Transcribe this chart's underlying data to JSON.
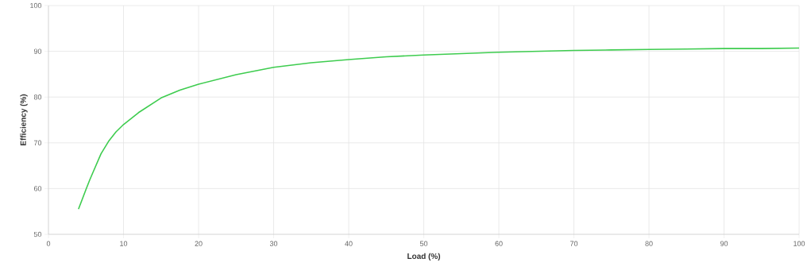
{
  "chart_data": {
    "type": "line",
    "xlabel": "Load (%)",
    "ylabel": "Efficiency (%)",
    "xlim": [
      0,
      100
    ],
    "ylim": [
      50,
      100
    ],
    "xticks": [
      0,
      10,
      20,
      30,
      40,
      50,
      60,
      70,
      80,
      90,
      100
    ],
    "yticks": [
      50,
      60,
      70,
      80,
      90,
      100
    ],
    "grid": true,
    "marker": "none",
    "series": [
      {
        "color": "#3ecc4f",
        "x": [
          4,
          5,
          5.5,
          6,
          7,
          8,
          9,
          10,
          12,
          15,
          17.5,
          20,
          25,
          30,
          35,
          40,
          45,
          50,
          55,
          60,
          65,
          70,
          75,
          80,
          85,
          90,
          95,
          100
        ],
        "values": [
          55.5,
          59.8,
          61.9,
          63.8,
          67.6,
          70.3,
          72.4,
          74.0,
          76.6,
          79.8,
          81.5,
          82.8,
          84.9,
          86.5,
          87.5,
          88.2,
          88.8,
          89.2,
          89.5,
          89.8,
          90.0,
          90.2,
          90.3,
          90.4,
          90.5,
          90.6,
          90.6,
          90.7
        ]
      }
    ]
  }
}
